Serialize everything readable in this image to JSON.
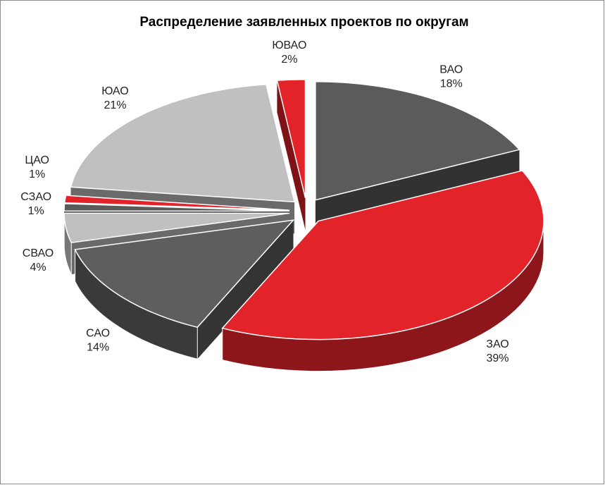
{
  "chart_data": {
    "type": "pie3d",
    "title": "Распределение заявленных проектов по округам",
    "categories": [
      "ВАО",
      "ЗАО",
      "САО",
      "СВАО",
      "СЗАО",
      "ЦАО",
      "ЮАО",
      "ЮВАО"
    ],
    "values": [
      18,
      39,
      14,
      4,
      1,
      1,
      21,
      2
    ],
    "value_labels": [
      "18%",
      "39%",
      "14%",
      "4%",
      "1%",
      "1%",
      "21%",
      "2%"
    ],
    "colors": [
      "#5b5b5b",
      "#e3232a",
      "#5e5e5e",
      "#c0c0c0",
      "#5a5a5a",
      "#e3232a",
      "#c0c0c0",
      "#e3232a"
    ]
  }
}
